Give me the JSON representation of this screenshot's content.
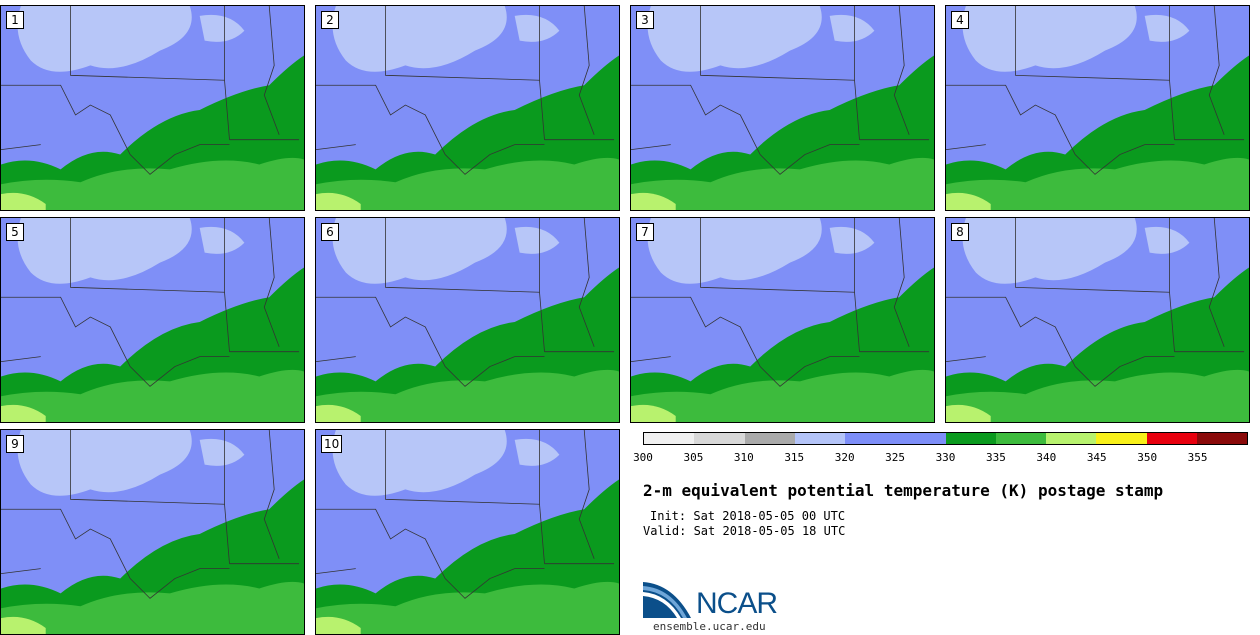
{
  "panels": [
    {
      "label": "1"
    },
    {
      "label": "2"
    },
    {
      "label": "3"
    },
    {
      "label": "4"
    },
    {
      "label": "5"
    },
    {
      "label": "6"
    },
    {
      "label": "7"
    },
    {
      "label": "8"
    },
    {
      "label": "9"
    },
    {
      "label": "10"
    }
  ],
  "colorbar": {
    "ticks": [
      "300",
      "305",
      "310",
      "315",
      "320",
      "325",
      "330",
      "335",
      "340",
      "345",
      "350",
      "355"
    ],
    "colors": [
      "#f0f0f0",
      "#d8d8d8",
      "#aaaaaa",
      "#b4c4f8",
      "#7d8ef8",
      "#7d8ef8",
      "#0a9a1e",
      "#3dbb3d",
      "#b8f26e",
      "#f8f01a",
      "#e8000e",
      "#8a0a0a"
    ]
  },
  "title": "2-m equivalent potential temperature (K) postage stamp",
  "init": "Init: Sat 2018-05-05 00 UTC",
  "valid": "Valid: Sat 2018-05-05 18 UTC",
  "logo": {
    "text": "NCAR",
    "site": "ensemble.ucar.edu"
  },
  "colors": {
    "light_blue": "#b7c6f8",
    "blue": "#7f8ff7",
    "dark_green": "#0a9a1e",
    "green": "#3dbb3d",
    "light_green": "#b8f26e"
  }
}
